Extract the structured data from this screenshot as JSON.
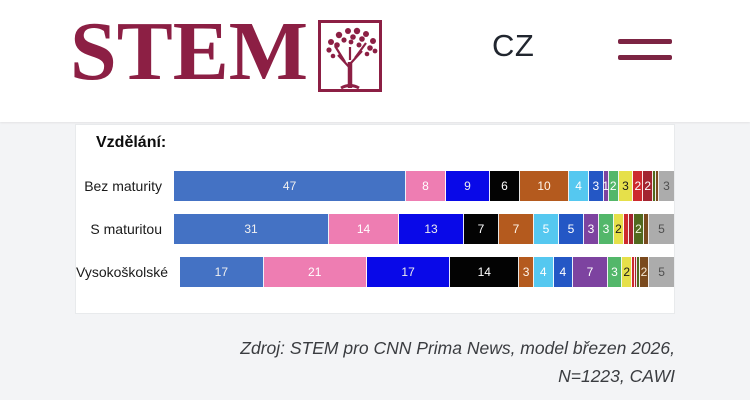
{
  "header": {
    "logo_text": "STEM",
    "language_label": "CZ",
    "brand_color": "#8C1F44"
  },
  "chart_data": {
    "type": "bar",
    "orientation": "horizontal",
    "stacked": true,
    "title": "Vzdělání:",
    "categories": [
      "Bez maturity",
      "S maturitou",
      "Vysokoškolské"
    ],
    "values_unit": "percent",
    "xlim": [
      0,
      100
    ],
    "legend": "none",
    "series": [
      {
        "id": "royal-blue",
        "color": "#4472C4",
        "text_color": "#F0F0F0",
        "values": [
          47,
          31,
          17
        ],
        "labels": [
          "47",
          "31",
          "17"
        ]
      },
      {
        "id": "pink",
        "color": "#EE7DB2",
        "text_color": "#FFFFFF",
        "values": [
          8,
          14,
          21
        ],
        "labels": [
          "8",
          "14",
          "21"
        ]
      },
      {
        "id": "bright-blue",
        "color": "#0909E8",
        "text_color": "#EDEDED",
        "values": [
          9,
          13,
          17
        ],
        "labels": [
          "9",
          "13",
          "17"
        ]
      },
      {
        "id": "black",
        "color": "#030303",
        "text_color": "#FFFFFF",
        "values": [
          6,
          7,
          14
        ],
        "labels": [
          "6",
          "7",
          "14"
        ]
      },
      {
        "id": "chocolate",
        "color": "#B45A1E",
        "text_color": "#FFF6EC",
        "values": [
          10,
          7,
          3
        ],
        "labels": [
          "10",
          "7",
          "3"
        ]
      },
      {
        "id": "sky-blue",
        "color": "#55C8F0",
        "text_color": "#FFFFFF",
        "values": [
          4,
          5,
          4
        ],
        "labels": [
          "4",
          "5",
          "4"
        ]
      },
      {
        "id": "medium-blue",
        "color": "#2457C5",
        "text_color": "#FFFFFF",
        "values": [
          3,
          5,
          4
        ],
        "labels": [
          "3",
          "5",
          "4"
        ]
      },
      {
        "id": "purple",
        "color": "#7D43A0",
        "text_color": "#FFFFFF",
        "values": [
          1,
          3,
          7
        ],
        "labels": [
          "1",
          "3",
          "7"
        ]
      },
      {
        "id": "green",
        "color": "#53B76A",
        "text_color": "#FFFFFF",
        "values": [
          2,
          3,
          3
        ],
        "labels": [
          "2",
          "3",
          "3"
        ]
      },
      {
        "id": "yellow",
        "color": "#E6E04A",
        "text_color": "#1A1A1A",
        "values": [
          3,
          2,
          2
        ],
        "labels": [
          "3",
          "2",
          "2"
        ]
      },
      {
        "id": "red",
        "color": "#CD2A2E",
        "text_color": "#FFFFFF",
        "values": [
          2,
          1,
          0.5
        ],
        "labels": [
          "2",
          "",
          ""
        ]
      },
      {
        "id": "dark-red",
        "color": "#A32430",
        "text_color": "#FFFFFF",
        "values": [
          2,
          1,
          0.5
        ],
        "labels": [
          "2",
          "",
          ""
        ]
      },
      {
        "id": "olive-green",
        "color": "#51691E",
        "text_color": "#F5F5DC",
        "values": [
          0.6,
          2,
          0.5
        ],
        "labels": [
          "",
          "2",
          ""
        ]
      },
      {
        "id": "dark-brown",
        "color": "#7A4A1E",
        "text_color": "#F3E7D3",
        "values": [
          0.6,
          1,
          2
        ],
        "labels": [
          "",
          "",
          "2"
        ]
      },
      {
        "id": "gray",
        "color": "#ACACAC",
        "text_color": "#4F4F4F",
        "values": [
          3,
          5,
          5
        ],
        "labels": [
          "3",
          "5",
          "5"
        ]
      }
    ]
  },
  "footer": {
    "source_line1": "Zdroj: STEM pro CNN Prima News, model březen 2026,",
    "source_line2": "N=1223, CAWI"
  }
}
